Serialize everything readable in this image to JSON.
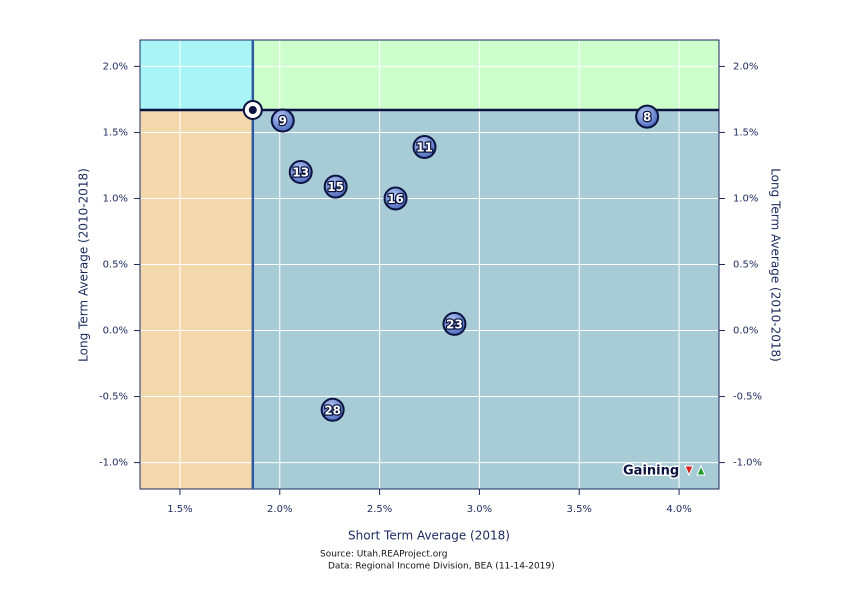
{
  "chart_data": {
    "type": "scatter",
    "x_label": "Short Term Average (2018)",
    "y_label": "Long Term Average (2010-2018)",
    "y2_label": "Long Term Average (2010-2018)",
    "source_lines": [
      "Source: Utah.REAProject.org",
      "Data: Regional Income Division, BEA (11-14-2019)"
    ],
    "legend_label": "Gaining",
    "xlim": [
      1.3,
      4.2
    ],
    "ylim": [
      -1.2,
      2.2
    ],
    "xticks": [
      {
        "value": 1.5,
        "label": "1.5%"
      },
      {
        "value": 2.0,
        "label": "2.0%"
      },
      {
        "value": 2.5,
        "label": "2.5%"
      },
      {
        "value": 3.0,
        "label": "3.0%"
      },
      {
        "value": 3.5,
        "label": "3.5%"
      },
      {
        "value": 4.0,
        "label": "4.0%"
      }
    ],
    "yticks": [
      {
        "value": 2.0,
        "label": "2.0%"
      },
      {
        "value": 1.5,
        "label": "1.5%"
      },
      {
        "value": 1.0,
        "label": "1.0%"
      },
      {
        "value": 0.5,
        "label": "0.5%"
      },
      {
        "value": 0.0,
        "label": "0.0%"
      },
      {
        "value": -0.5,
        "label": "-0.5%"
      },
      {
        "value": -1.0,
        "label": "-1.0%"
      }
    ],
    "grid": true,
    "reference": {
      "x": 1.865,
      "y": 1.67
    },
    "quadrant_colors": {
      "top_left": "#a9f5f5",
      "top_right": "#ccffcc",
      "bottom_left": "#f3d7ad",
      "bottom_right": "#a8ccd6"
    },
    "series": [
      {
        "color": "#6f8fd9",
        "point_labels": [
          "9",
          "13",
          "15",
          "16",
          "11",
          "8",
          "23",
          "28"
        ],
        "x": [
          2.015,
          2.105,
          2.28,
          2.58,
          2.725,
          3.84,
          2.875,
          2.265
        ],
        "values": [
          1.59,
          1.2,
          1.09,
          1.0,
          1.39,
          1.62,
          0.05,
          -0.6
        ]
      }
    ]
  }
}
